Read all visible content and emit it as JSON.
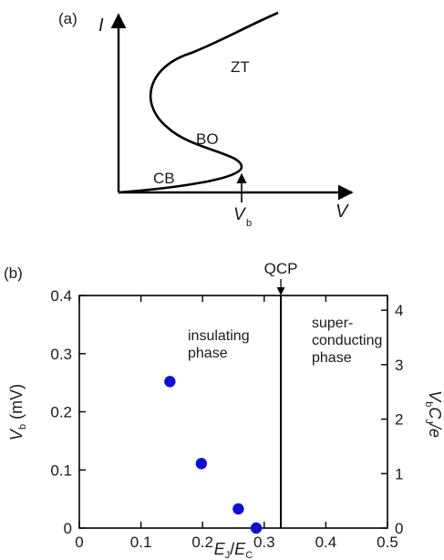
{
  "chart_data": [
    {
      "type": "line",
      "panel_label": "(a)",
      "y_axis_label": "I",
      "x_axis_label": "V",
      "vb_label": {
        "main": "V",
        "sub": "b"
      },
      "regions": [
        "ZT",
        "BO",
        "CB"
      ]
    },
    {
      "type": "scatter",
      "panel_label": "(b)",
      "xlabel": {
        "main1": "E",
        "sub1": "J",
        "sep": "/",
        "main2": "E",
        "sub2": "C"
      },
      "ylabel": {
        "main": "V",
        "sub": "b",
        "unit": " (mV)"
      },
      "ylabel_right": {
        "a": "V",
        "b": "b",
        "c": "C",
        "d": "J",
        "e": "/e"
      },
      "xlim": [
        0,
        0.5
      ],
      "ylim": [
        0,
        0.4
      ],
      "ylim_right": [
        0,
        4.27
      ],
      "x_ticks": [
        "0",
        "0.1",
        "0.2",
        "0.3",
        "0.4",
        "0.5"
      ],
      "y_ticks": [
        "0",
        "0.1",
        "0.2",
        "0.3",
        "0.4"
      ],
      "y_right_ticks": [
        "0",
        "1",
        "2",
        "3",
        "4"
      ],
      "points": [
        {
          "x": 0.147,
          "y": 0.252
        },
        {
          "x": 0.198,
          "y": 0.111
        },
        {
          "x": 0.258,
          "y": 0.033
        },
        {
          "x": 0.287,
          "y": 0.0
        }
      ],
      "qcp": {
        "x": 0.327,
        "label": "QCP"
      },
      "annotations": [
        {
          "lines": [
            "insulating",
            "phase"
          ]
        },
        {
          "lines": [
            "super-",
            "conducting",
            "phase"
          ]
        }
      ],
      "marker_color": "#1010d0"
    }
  ]
}
